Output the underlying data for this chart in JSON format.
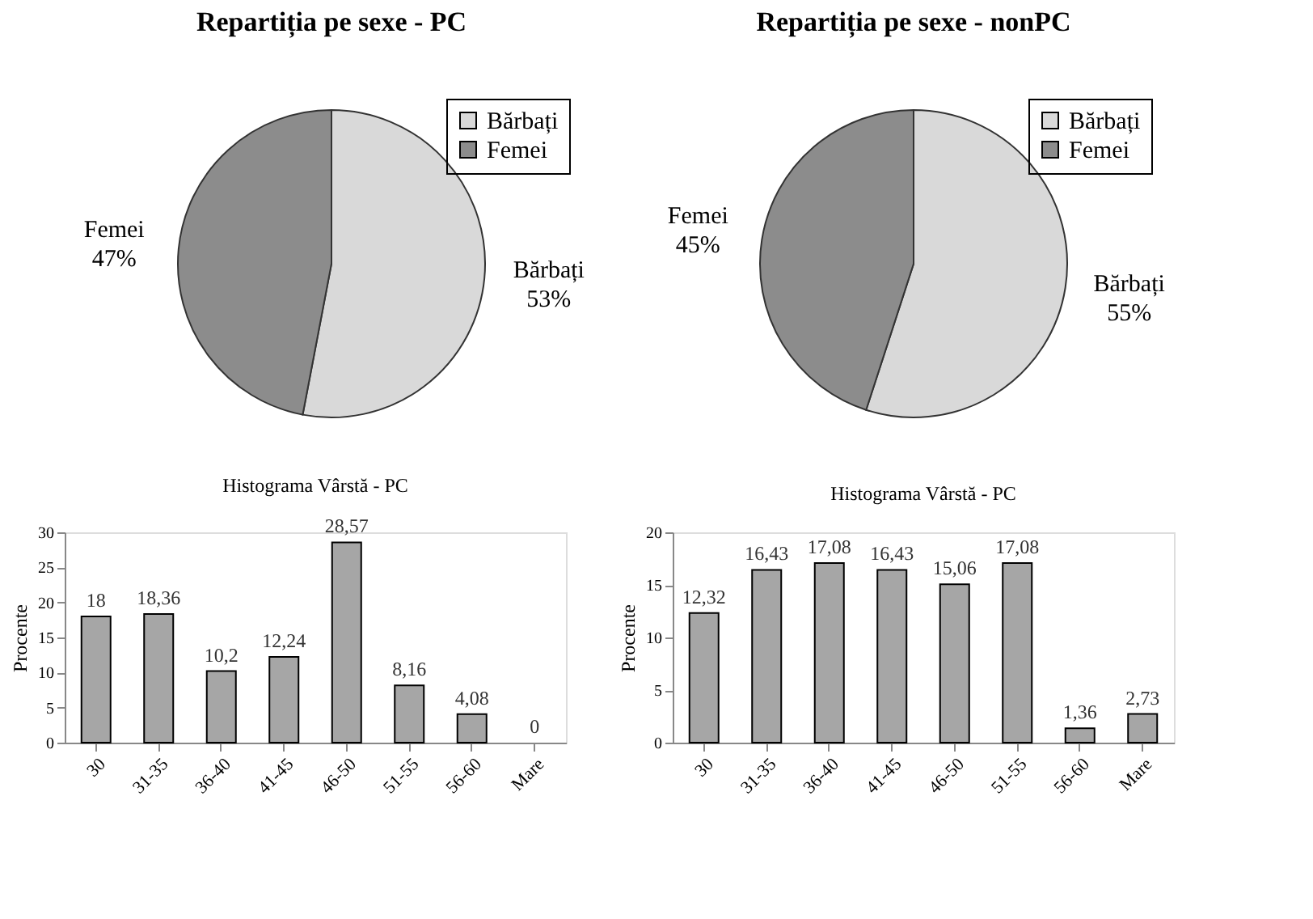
{
  "chart_data": [
    {
      "type": "pie",
      "title": "Repartiția pe sexe - PC",
      "categories": [
        "Bărbați",
        "Femei"
      ],
      "values": [
        53,
        47
      ],
      "value_labels": [
        "53%",
        "47%"
      ],
      "colors": [
        "#d9d9d9",
        "#8c8c8c"
      ],
      "data_labels": true,
      "legend": "top right"
    },
    {
      "type": "pie",
      "title": "Repartiția pe sexe - nonPC",
      "categories": [
        "Bărbați",
        "Femei"
      ],
      "values": [
        55,
        45
      ],
      "value_labels": [
        "55%",
        "45%"
      ],
      "colors": [
        "#d9d9d9",
        "#8c8c8c"
      ],
      "data_labels": true,
      "legend": "top right"
    },
    {
      "type": "bar",
      "title": "Histograma Vârstă - PC",
      "ylabel": "Procente",
      "categories": [
        "30",
        "31-35",
        "36-40",
        "41-45",
        "46-50",
        "51-55",
        "56-60",
        "Mare"
      ],
      "values": [
        18,
        18.36,
        10.2,
        12.24,
        28.57,
        8.16,
        4.08,
        0
      ],
      "value_labels": [
        "18",
        "18,36",
        "10,2",
        "12,24",
        "28,57",
        "8,16",
        "4,08",
        "0"
      ],
      "color": "#a6a6a6",
      "ylim": [
        0,
        30
      ],
      "yticks": [
        0,
        5,
        10,
        15,
        20,
        25,
        30
      ],
      "grid": false
    },
    {
      "type": "bar",
      "title": "Histograma Vârstă - PC",
      "ylabel": "Procente",
      "categories": [
        "30",
        "31-35",
        "36-40",
        "41-45",
        "46-50",
        "51-55",
        "56-60",
        "Mare"
      ],
      "values": [
        12.32,
        16.43,
        17.08,
        16.43,
        15.06,
        17.08,
        1.36,
        2.73
      ],
      "value_labels": [
        "12,32",
        "16,43",
        "17,08",
        "16,43",
        "15,06",
        "17,08",
        "1,36",
        "2,73"
      ],
      "color": "#a6a6a6",
      "ylim": [
        0,
        20
      ],
      "yticks": [
        0,
        5,
        10,
        15,
        20
      ],
      "grid": false
    }
  ]
}
